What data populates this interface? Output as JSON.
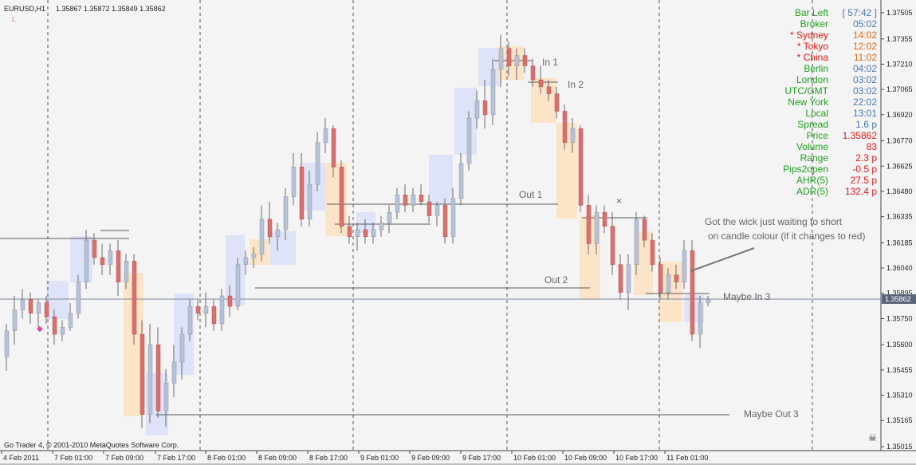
{
  "header": {
    "symbol": "EURUSD,H1",
    "ohlc": "1.35867 1.35872 1.35849 1.35862",
    "indicator_tag": "1."
  },
  "copyright": "Go Trader 4, © 2001-2010 MetaQuotes Software Corp.",
  "info_panel": [
    {
      "label": "Bar Left",
      "value": "[ 57:42 ]",
      "label_color": "#1f9e1f",
      "value_color": "#4a78b0"
    },
    {
      "label": "Broker",
      "value": "05:02",
      "label_color": "#1f9e1f",
      "value_color": "#4a78b0"
    },
    {
      "label": "* Sydney",
      "value": "14:02",
      "label_color": "#e01818",
      "value_color": "#e06a10"
    },
    {
      "label": "* Tokyo",
      "value": "12:02",
      "label_color": "#e01818",
      "value_color": "#e06a10"
    },
    {
      "label": "* China",
      "value": "11:02",
      "label_color": "#e01818",
      "value_color": "#e06a10"
    },
    {
      "label": "Berlin",
      "value": "04:02",
      "label_color": "#1f9e1f",
      "value_color": "#4a78b0"
    },
    {
      "label": "London",
      "value": "03:02",
      "label_color": "#1f9e1f",
      "value_color": "#4a78b0"
    },
    {
      "label": "UTC/GMT",
      "value": "03:02",
      "label_color": "#1f9e1f",
      "value_color": "#4a78b0"
    },
    {
      "label": "New York",
      "value": "22:02",
      "label_color": "#1f9e1f",
      "value_color": "#4a78b0"
    },
    {
      "label": "Local",
      "value": "13:01",
      "label_color": "#1f9e1f",
      "value_color": "#4a78b0"
    },
    {
      "label": "Spread",
      "value": "1.6 p",
      "label_color": "#1f9e1f",
      "value_color": "#4a78b0"
    },
    {
      "label": "Price",
      "value": "1.35862",
      "label_color": "#1f9e1f",
      "value_color": "#e01818"
    },
    {
      "label": "Volume",
      "value": "83",
      "label_color": "#1f9e1f",
      "value_color": "#e01818"
    },
    {
      "label": "Range",
      "value": "2.3 p",
      "label_color": "#1f9e1f",
      "value_color": "#e01818"
    },
    {
      "label": "Pips2open",
      "value": "-0.5 p",
      "label_color": "#1f9e1f",
      "value_color": "#e01818"
    },
    {
      "label": "AHR(5)",
      "value": "27.5 p",
      "label_color": "#1f9e1f",
      "value_color": "#e01818"
    },
    {
      "label": "ADR(5)",
      "value": "132.4 p",
      "label_color": "#1f9e1f",
      "value_color": "#e01818"
    }
  ],
  "annotations": {
    "in1": "In 1",
    "in2": "In 2",
    "out1": "Out 1",
    "out2": "Out 2",
    "maybe_in3": "Maybe In 3",
    "maybe_out3": "Maybe Out 3",
    "comment_line1": "Got the wick just waiting to short",
    "comment_line2": "on candle colour (if it changes to red)"
  },
  "price_labels": [
    "1.37505",
    "1.37355",
    "1.37210",
    "1.37065",
    "1.36920",
    "1.36770",
    "1.36625",
    "1.36480",
    "1.36335",
    "1.36185",
    "1.36040",
    "1.35895",
    "1.35750",
    "1.35600",
    "1.35455",
    "1.35310",
    "1.35165",
    "1.35015"
  ],
  "current_price_label": "1.35862",
  "time_labels": [
    "4 Feb 2011",
    "7 Feb 01:00",
    "7 Feb 09:00",
    "7 Feb 17:00",
    "8 Feb 01:00",
    "8 Feb 09:00",
    "8 Feb 17:00",
    "9 Feb 01:00",
    "9 Feb 09:00",
    "9 Feb 17:00",
    "10 Feb 01:00",
    "10 Feb 09:00",
    "10 Feb 17:00",
    "11 Feb 01:00"
  ],
  "colors": {
    "background": "#f4f4f4",
    "bull_candle": "#b8c2d6",
    "bear_candle": "#d97070",
    "wick": "#6a6a6a",
    "blue_box": "#dfe3f8",
    "orange_box": "#fbe4c8",
    "grid_dash": "#555555",
    "hline": "#5a5a5a",
    "price_tag_bg": "#5c6578"
  },
  "chart_data": {
    "type": "candlestick",
    "title": "EURUSD,H1",
    "ylim": [
      1.34985,
      1.3756
    ],
    "current_price": 1.35862,
    "annotated_levels": [
      {
        "label": "In 1",
        "price": 1.3722
      },
      {
        "label": "In 2",
        "price": 1.371
      },
      {
        "label": "Out 1",
        "price": 1.3641
      },
      {
        "label": "Out 2",
        "price": 1.3591
      },
      {
        "label": "Maybe In 3",
        "price": 1.3588
      },
      {
        "label": "Maybe Out 3",
        "price": 1.3519
      }
    ],
    "candles": [
      [
        1.3553,
        1.3572,
        1.3545,
        1.3568
      ],
      [
        1.3568,
        1.3588,
        1.356,
        1.358
      ],
      [
        1.358,
        1.3592,
        1.3575,
        1.3586
      ],
      [
        1.3586,
        1.359,
        1.3572,
        1.3578
      ],
      [
        1.3578,
        1.3586,
        1.357,
        1.3584
      ],
      [
        1.3584,
        1.3588,
        1.3572,
        1.3576
      ],
      [
        1.3576,
        1.358,
        1.356,
        1.3566
      ],
      [
        1.3566,
        1.3574,
        1.3562,
        1.357
      ],
      [
        1.357,
        1.3584,
        1.3568,
        1.3578
      ],
      [
        1.3578,
        1.36,
        1.3575,
        1.3596
      ],
      [
        1.3596,
        1.3626,
        1.3592,
        1.362
      ],
      [
        1.362,
        1.3624,
        1.3606,
        1.361
      ],
      [
        1.361,
        1.3618,
        1.36,
        1.3606
      ],
      [
        1.3606,
        1.3618,
        1.36,
        1.3614
      ],
      [
        1.3614,
        1.362,
        1.3588,
        1.3596
      ],
      [
        1.3596,
        1.3612,
        1.3592,
        1.3608
      ],
      [
        1.3608,
        1.3612,
        1.356,
        1.3566
      ],
      [
        1.3566,
        1.3574,
        1.3512,
        1.352
      ],
      [
        1.352,
        1.3572,
        1.3515,
        1.356
      ],
      [
        1.356,
        1.357,
        1.3518,
        1.3522
      ],
      [
        1.3522,
        1.3546,
        1.3513,
        1.3538
      ],
      [
        1.3538,
        1.356,
        1.353,
        1.355
      ],
      [
        1.355,
        1.357,
        1.354,
        1.3566
      ],
      [
        1.3566,
        1.3586,
        1.3562,
        1.3582
      ],
      [
        1.3582,
        1.3586,
        1.3574,
        1.3578
      ],
      [
        1.3578,
        1.359,
        1.357,
        1.3582
      ],
      [
        1.3582,
        1.3586,
        1.3568,
        1.3572
      ],
      [
        1.3572,
        1.3592,
        1.3568,
        1.3588
      ],
      [
        1.3588,
        1.3594,
        1.3576,
        1.3582
      ],
      [
        1.3582,
        1.361,
        1.358,
        1.3606
      ],
      [
        1.3606,
        1.3614,
        1.36,
        1.361
      ],
      [
        1.361,
        1.3616,
        1.3604,
        1.3612
      ],
      [
        1.3612,
        1.364,
        1.3608,
        1.3632
      ],
      [
        1.3632,
        1.3642,
        1.3618,
        1.3622
      ],
      [
        1.3622,
        1.363,
        1.3614,
        1.3626
      ],
      [
        1.3626,
        1.365,
        1.362,
        1.3645
      ],
      [
        1.3645,
        1.367,
        1.364,
        1.3662
      ],
      [
        1.3662,
        1.367,
        1.3628,
        1.3632
      ],
      [
        1.3632,
        1.366,
        1.3628,
        1.3652
      ],
      [
        1.3652,
        1.3682,
        1.3648,
        1.3676
      ],
      [
        1.3676,
        1.369,
        1.367,
        1.3684
      ],
      [
        1.3684,
        1.3686,
        1.3656,
        1.3662
      ],
      [
        1.3662,
        1.3666,
        1.3624,
        1.3628
      ],
      [
        1.3628,
        1.3634,
        1.3618,
        1.3622
      ],
      [
        1.3622,
        1.363,
        1.3614,
        1.3626
      ],
      [
        1.3626,
        1.3632,
        1.3618,
        1.3622
      ],
      [
        1.3622,
        1.363,
        1.3618,
        1.3626
      ],
      [
        1.3626,
        1.3634,
        1.3622,
        1.363
      ],
      [
        1.363,
        1.364,
        1.3624,
        1.3636
      ],
      [
        1.3636,
        1.365,
        1.3632,
        1.3646
      ],
      [
        1.3646,
        1.3652,
        1.3636,
        1.364
      ],
      [
        1.364,
        1.365,
        1.3636,
        1.3646
      ],
      [
        1.3646,
        1.3652,
        1.364,
        1.3642
      ],
      [
        1.3642,
        1.3646,
        1.363,
        1.3634
      ],
      [
        1.3634,
        1.3642,
        1.3628,
        1.364
      ],
      [
        1.364,
        1.3644,
        1.3618,
        1.3622
      ],
      [
        1.3622,
        1.365,
        1.3618,
        1.3644
      ],
      [
        1.3644,
        1.367,
        1.364,
        1.3664
      ],
      [
        1.3664,
        1.3694,
        1.366,
        1.369
      ],
      [
        1.369,
        1.3706,
        1.3684,
        1.37
      ],
      [
        1.37,
        1.3712,
        1.3684,
        1.3692
      ],
      [
        1.3692,
        1.3724,
        1.3686,
        1.3718
      ],
      [
        1.3718,
        1.3738,
        1.3708,
        1.373
      ],
      [
        1.373,
        1.3734,
        1.3714,
        1.372
      ],
      [
        1.372,
        1.373,
        1.3712,
        1.3726
      ],
      [
        1.3726,
        1.373,
        1.3716,
        1.372
      ],
      [
        1.372,
        1.3724,
        1.3708,
        1.3712
      ],
      [
        1.3712,
        1.372,
        1.3704,
        1.3708
      ],
      [
        1.3708,
        1.3712,
        1.37,
        1.3704
      ],
      [
        1.3704,
        1.3708,
        1.369,
        1.3694
      ],
      [
        1.3694,
        1.3698,
        1.3672,
        1.3676
      ],
      [
        1.3676,
        1.369,
        1.367,
        1.3684
      ],
      [
        1.3684,
        1.3686,
        1.3636,
        1.364
      ],
      [
        1.364,
        1.3646,
        1.3612,
        1.3618
      ],
      [
        1.3618,
        1.364,
        1.3612,
        1.3636
      ],
      [
        1.3636,
        1.364,
        1.3624,
        1.3628
      ],
      [
        1.3628,
        1.3636,
        1.36,
        1.3606
      ],
      [
        1.3606,
        1.3612,
        1.3586,
        1.359
      ],
      [
        1.359,
        1.3612,
        1.358,
        1.3606
      ],
      [
        1.3606,
        1.3636,
        1.36,
        1.3632
      ],
      [
        1.3632,
        1.3634,
        1.3616,
        1.362
      ],
      [
        1.362,
        1.3624,
        1.3602,
        1.3606
      ],
      [
        1.3606,
        1.361,
        1.3586,
        1.359
      ],
      [
        1.359,
        1.3604,
        1.3586,
        1.36
      ],
      [
        1.36,
        1.3606,
        1.3592,
        1.3596
      ],
      [
        1.3596,
        1.362,
        1.3592,
        1.3614
      ],
      [
        1.3614,
        1.362,
        1.3562,
        1.3566
      ],
      [
        1.3566,
        1.3588,
        1.3558,
        1.3584
      ],
      [
        1.3584,
        1.3588,
        1.3582,
        1.3586
      ]
    ]
  }
}
